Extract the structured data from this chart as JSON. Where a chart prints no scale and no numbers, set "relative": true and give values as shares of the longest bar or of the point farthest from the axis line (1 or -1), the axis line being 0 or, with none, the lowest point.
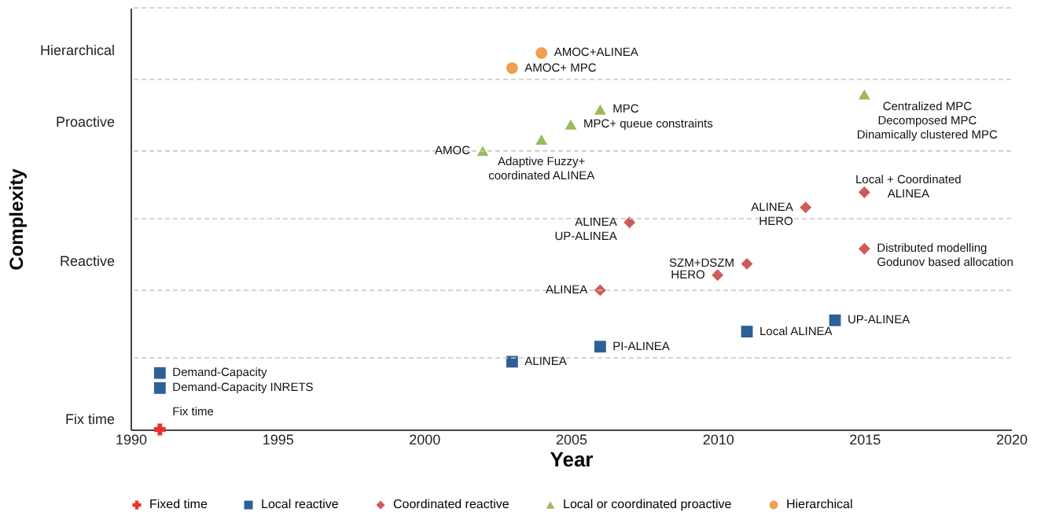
{
  "chart_data": {
    "type": "scatter",
    "xlabel": "Year",
    "ylabel": "Complexity",
    "relative": true,
    "xlim": [
      1990,
      2020
    ],
    "xticks": [
      1990,
      1995,
      2000,
      2005,
      2010,
      2015,
      2020
    ],
    "legend": "bottom",
    "series": [
      {
        "name": "Fixed time",
        "color": "#e8312a",
        "marker": "cross",
        "x": [
          1991
        ],
        "values": [
          0
        ]
      },
      {
        "name": "Local reactive",
        "color": "#2f5f98",
        "marker": "square",
        "x": [
          1991,
          1991,
          2003,
          2006,
          2011,
          2014
        ],
        "values": [
          0.15,
          0.11,
          0.18,
          0.22,
          0.26,
          0.29
        ]
      },
      {
        "name": "Coordinated reactive",
        "color": "#d05a5a",
        "marker": "diamond",
        "x": [
          2007,
          2013,
          2015,
          2015,
          2011,
          2010,
          2006
        ],
        "values": [
          0.55,
          0.59,
          0.63,
          0.48,
          0.44,
          0.41,
          0.37
        ]
      },
      {
        "name": "Local or coordinated proactive",
        "color": "#9bbb59",
        "marker": "triangle",
        "x": [
          2002,
          2004,
          2005,
          2006,
          2015
        ],
        "values": [
          0.74,
          0.77,
          0.81,
          0.85,
          0.89
        ]
      },
      {
        "name": "Hierarchical",
        "color": "#f0a050",
        "marker": "circle",
        "x": [
          2004,
          2003
        ],
        "values": [
          1,
          0.96
        ]
      }
    ],
    "ref_lines": [
      {
        "axis": "y",
        "value": 0.19,
        "color": "#c8c8c8",
        "line_style": "dashed"
      },
      {
        "axis": "y",
        "value": 0.37,
        "color": "#c8c8c8",
        "line_style": "dashed"
      },
      {
        "axis": "y",
        "value": 0.56,
        "color": "#c8c8c8",
        "line_style": "dashed"
      },
      {
        "axis": "y",
        "value": 0.74,
        "color": "#c8c8c8",
        "line_style": "dashed"
      },
      {
        "axis": "y",
        "value": 0.93,
        "color": "#c8c8c8",
        "line_style": "dashed"
      },
      {
        "axis": "y",
        "value": 1.12,
        "color": "#c8c8c8",
        "line_style": "dashed"
      }
    ],
    "annotations": [
      "Fix time",
      "Reactive",
      "Proactive",
      "Hierarchical",
      {
        "text": "Fix time",
        "x": 1991,
        "y": 0
      },
      {
        "text": "Demand-Capacity",
        "x": 1991,
        "y": 0.15
      },
      {
        "text": "Demand-Capacity INRETS",
        "x": 1991,
        "y": 0.11
      },
      {
        "text": "ALINEA",
        "x": 2003,
        "y": 0.18
      },
      {
        "text": "PI-ALINEA",
        "x": 2006,
        "y": 0.22
      },
      {
        "text": "Local ALINEA",
        "x": 2011,
        "y": 0.26
      },
      {
        "text": "UP-ALINEA",
        "x": 2014,
        "y": 0.29
      },
      {
        "text": "ALINEA\nUP-ALINEA",
        "x": 2007,
        "y": 0.55
      },
      {
        "text": "ALINEA\nHERO",
        "x": 2013,
        "y": 0.59
      },
      {
        "text": "Local + Coordinated\nALINEA",
        "x": 2015,
        "y": 0.63
      },
      {
        "text": "Distributed modelling\nGodunov based allocation",
        "x": 2015,
        "y": 0.48
      },
      {
        "text": "SZM+DSZM",
        "x": 2011,
        "y": 0.44
      },
      {
        "text": "HERO",
        "x": 2010,
        "y": 0.41
      },
      {
        "text": "ALINEA",
        "x": 2006,
        "y": 0.37
      },
      {
        "text": "AMOC",
        "x": 2002,
        "y": 0.74
      },
      {
        "text": "Adaptive Fuzzy+\ncoordinated ALINEA",
        "x": 2004,
        "y": 0.77
      },
      {
        "text": "MPC+ queue constraints",
        "x": 2005,
        "y": 0.81
      },
      {
        "text": "MPC",
        "x": 2006,
        "y": 0.85
      },
      {
        "text": "Centralized MPC\nDecomposed MPC\nDinamically clustered MPC",
        "x": 2015,
        "y": 0.89
      },
      {
        "text": "AMOC+ALINEA",
        "x": 2004,
        "y": 1
      },
      {
        "text": "AMOC+ MPC",
        "x": 2003,
        "y": 0.96
      }
    ]
  }
}
